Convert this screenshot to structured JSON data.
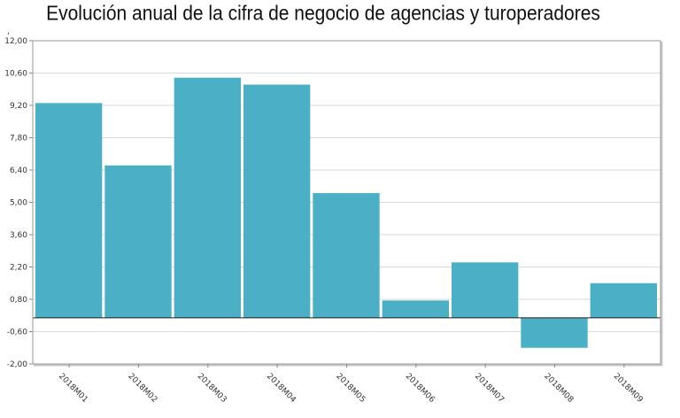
{
  "chart_data": {
    "type": "bar",
    "title": "Evolución anual de la cifra de negocio de agencias y turoperadores",
    "top_marker": ",",
    "categories": [
      "2018M01",
      "2018M02",
      "2018M03",
      "2018M04",
      "2018M05",
      "2018M06",
      "2018M07",
      "2018M08",
      "2018M09"
    ],
    "values": [
      9.3,
      6.6,
      10.4,
      10.1,
      5.4,
      0.75,
      2.4,
      -1.3,
      1.5
    ],
    "ylim": [
      -2.0,
      12.0
    ],
    "yticks": [
      12.0,
      10.6,
      9.2,
      7.8,
      6.4,
      5.0,
      3.6,
      2.2,
      0.8,
      -0.6,
      -2.0
    ],
    "ytick_labels": [
      "12,00",
      "10,60",
      "9,20",
      "7,80",
      "6,40",
      "5,00",
      "3,60",
      "2,20",
      "0,80",
      "-0,60",
      "-2,00"
    ],
    "xlabel": "",
    "ylabel": "",
    "grid": true,
    "bar_color": "#4bb0c6"
  }
}
